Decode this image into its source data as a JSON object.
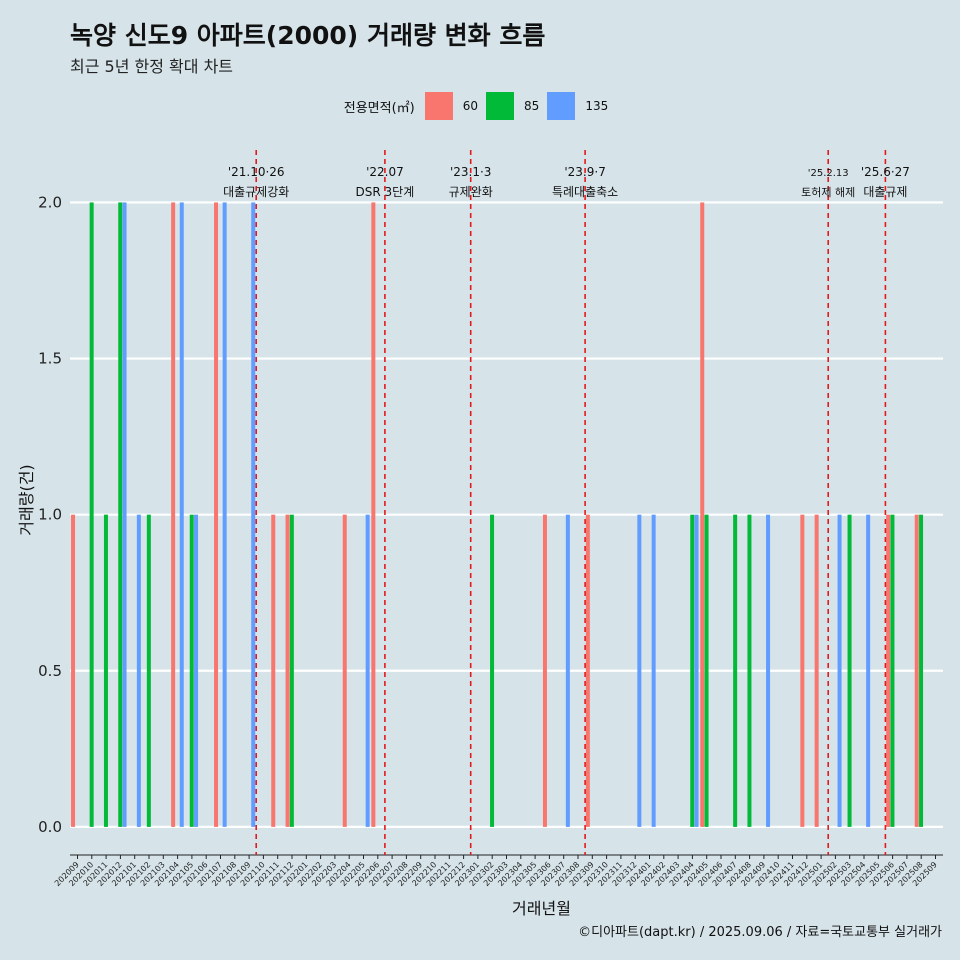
{
  "chart_data": {
    "type": "bar",
    "title": "녹양 신도9 아파트(2000) 거래량 변화 흐름",
    "subtitle": "최근 5년 한정 확대 차트",
    "xlabel": "거래년월",
    "ylabel": "거래량(건)",
    "ylim": [
      -0.09,
      2.2
    ],
    "yticks": [
      "0.0",
      "0.5",
      "1.0",
      "1.5",
      "2.0"
    ],
    "ytick_values": [
      0,
      0.5,
      1.0,
      1.5,
      2.0
    ],
    "legend_title": "전용면적(㎡)",
    "legend_placement": "top-center",
    "colors": {
      "60": "#f8766d",
      "85": "#00ba38",
      "135": "#619cff"
    },
    "categories": [
      "202009",
      "202010",
      "202011",
      "202012",
      "202101",
      "202102",
      "202103",
      "202104",
      "202105",
      "202106",
      "202107",
      "202108",
      "202109",
      "202110",
      "202111",
      "202112",
      "202201",
      "202202",
      "202203",
      "202204",
      "202205",
      "202206",
      "202207",
      "202208",
      "202209",
      "202210",
      "202211",
      "202212",
      "202301",
      "202302",
      "202303",
      "202304",
      "202305",
      "202306",
      "202307",
      "202308",
      "202309",
      "202310",
      "202311",
      "202312",
      "202401",
      "202402",
      "202403",
      "202404",
      "202405",
      "202406",
      "202407",
      "202408",
      "202409",
      "202410",
      "202411",
      "202412",
      "202501",
      "202502",
      "202503",
      "202504",
      "202505",
      "202506",
      "202507",
      "202508",
      "202509"
    ],
    "series": [
      {
        "name": "60",
        "values": [
          1,
          0,
          0,
          0,
          0,
          0,
          0,
          2,
          0,
          0,
          2,
          0,
          0,
          0,
          1,
          1,
          0,
          0,
          0,
          1,
          0,
          2,
          0,
          0,
          0,
          0,
          0,
          0,
          0,
          0,
          0,
          0,
          0,
          1,
          0,
          0,
          1,
          0,
          0,
          0,
          0,
          0,
          0,
          0,
          2,
          0,
          0,
          0,
          0,
          0,
          0,
          1,
          1,
          0,
          0,
          0,
          0,
          1,
          0,
          1,
          0
        ]
      },
      {
        "name": "85",
        "values": [
          0,
          2,
          1,
          2,
          0,
          1,
          0,
          0,
          1,
          0,
          0,
          0,
          0,
          0,
          0,
          1,
          0,
          0,
          0,
          0,
          0,
          0,
          0,
          0,
          0,
          0,
          0,
          0,
          0,
          1,
          0,
          0,
          0,
          0,
          0,
          0,
          0,
          0,
          0,
          0,
          0,
          0,
          0,
          1,
          1,
          0,
          1,
          1,
          0,
          0,
          0,
          0,
          0,
          0,
          1,
          0,
          0,
          1,
          0,
          1,
          0
        ]
      },
      {
        "name": "135",
        "values": [
          0,
          0,
          0,
          2,
          1,
          0,
          0,
          2,
          1,
          0,
          2,
          0,
          2,
          0,
          0,
          0,
          0,
          0,
          0,
          0,
          1,
          0,
          0,
          0,
          0,
          0,
          0,
          0,
          0,
          0,
          0,
          0,
          0,
          0,
          1,
          0,
          0,
          0,
          0,
          1,
          1,
          0,
          0,
          1,
          0,
          0,
          0,
          0,
          1,
          0,
          0,
          0,
          0,
          1,
          0,
          1,
          0,
          0,
          0,
          0,
          0
        ]
      }
    ],
    "annotations": [
      {
        "category": "202110",
        "date": "'21.10·26",
        "text": "대출규제강화"
      },
      {
        "category": "202207",
        "date": "'22.07",
        "text": "DSR 3단계"
      },
      {
        "category": "202301",
        "date": "'23.1·3",
        "text": "규제완화"
      },
      {
        "category": "202309",
        "date": "'23.9·7",
        "text": "특례대출축소"
      },
      {
        "category": "202502",
        "date": "'25.2.13",
        "text": "토허제 해제"
      },
      {
        "category": "202506",
        "date": "'25.6·27",
        "text": "대출규제"
      }
    ],
    "grid": "horizontal-major"
  },
  "caption": "©디아파트(dapt.kr) / 2025.09.06 / 자료=국토교통부 실거래가"
}
